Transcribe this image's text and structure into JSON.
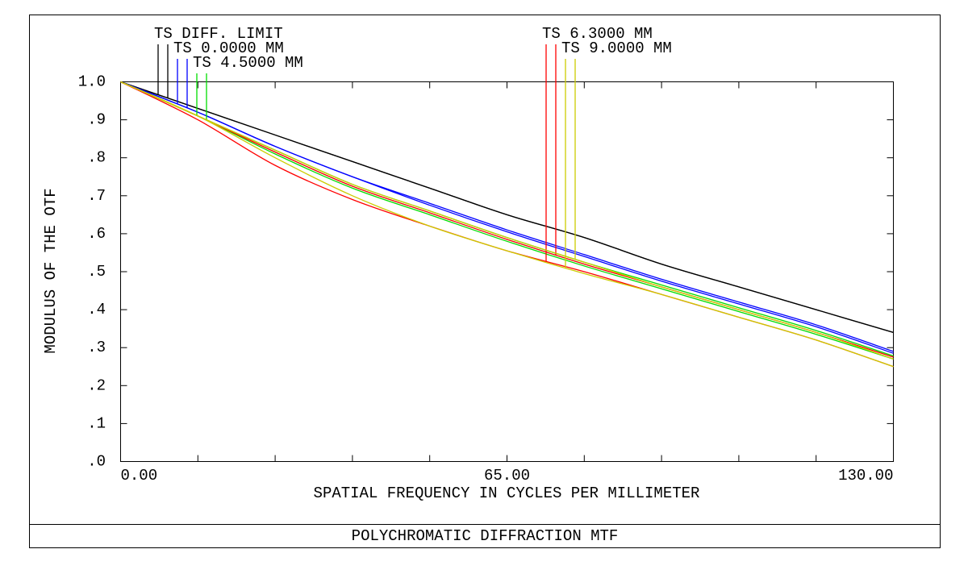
{
  "chart_data": {
    "type": "line",
    "title": "POLYCHROMATIC DIFFRACTION MTF",
    "xlabel": "SPATIAL FREQUENCY IN CYCLES PER MILLIMETER",
    "ylabel": "MODULUS OF THE OTF",
    "x": [
      0,
      13,
      26,
      39,
      52,
      65,
      78,
      91,
      104,
      117,
      130
    ],
    "xlim": [
      0,
      130
    ],
    "ylim": [
      0,
      1
    ],
    "xticks": [
      {
        "value": 0,
        "label": "0.00"
      },
      {
        "value": 65,
        "label": "65.00"
      },
      {
        "value": 130,
        "label": "130.00"
      }
    ],
    "xminor_ticks": [
      13,
      26,
      39,
      52,
      78,
      91,
      104,
      117
    ],
    "yticks": [
      {
        "value": 0,
        "label": ".0"
      },
      {
        "value": 0.1,
        "label": ".1"
      },
      {
        "value": 0.2,
        "label": ".2"
      },
      {
        "value": 0.3,
        "label": ".3"
      },
      {
        "value": 0.4,
        "label": ".4"
      },
      {
        "value": 0.5,
        "label": ".5"
      },
      {
        "value": 0.6,
        "label": ".6"
      },
      {
        "value": 0.7,
        "label": ".7"
      },
      {
        "value": 0.8,
        "label": ".8"
      },
      {
        "value": 0.9,
        "label": ".9"
      },
      {
        "value": 1,
        "label": "1.0"
      }
    ],
    "series": [
      {
        "name": "TS DIFF. LIMIT",
        "color": "#000000",
        "tangential": [
          1,
          0.93,
          0.86,
          0.79,
          0.72,
          0.65,
          0.59,
          0.52,
          0.46,
          0.4,
          0.34
        ],
        "sagittal": [
          1,
          0.93,
          0.86,
          0.79,
          0.72,
          0.65,
          0.59,
          0.52,
          0.46,
          0.4,
          0.34
        ]
      },
      {
        "name": "TS 0.0000 MM",
        "color": "#0000ff",
        "tangential": [
          1,
          0.92,
          0.83,
          0.75,
          0.68,
          0.61,
          0.545,
          0.48,
          0.42,
          0.36,
          0.29
        ],
        "sagittal": [
          1,
          0.92,
          0.83,
          0.75,
          0.675,
          0.605,
          0.54,
          0.475,
          0.415,
          0.355,
          0.285
        ]
      },
      {
        "name": "TS 4.5000 MM",
        "color": "#00dd00",
        "tangential": [
          1,
          0.91,
          0.82,
          0.73,
          0.66,
          0.59,
          0.525,
          0.465,
          0.405,
          0.345,
          0.278
        ],
        "sagittal": [
          1,
          0.91,
          0.81,
          0.72,
          0.65,
          0.58,
          0.515,
          0.455,
          0.395,
          0.335,
          0.27
        ]
      },
      {
        "name": "TS 6.3000 MM",
        "color": "#ff0000",
        "tangential": [
          1,
          0.9,
          0.78,
          0.69,
          0.62,
          0.555,
          0.5,
          0.44,
          0.38,
          0.32,
          0.25
        ],
        "sagittal": [
          1,
          0.91,
          0.815,
          0.725,
          0.655,
          0.585,
          0.52,
          0.46,
          0.4,
          0.34,
          0.275
        ]
      },
      {
        "name": "TS 9.0000 MM",
        "color": "#cccc00",
        "tangential": [
          1,
          0.91,
          0.8,
          0.7,
          0.62,
          0.555,
          0.495,
          0.44,
          0.38,
          0.32,
          0.25
        ],
        "sagittal": [
          1,
          0.91,
          0.82,
          0.73,
          0.66,
          0.59,
          0.525,
          0.46,
          0.4,
          0.34,
          0.27
        ]
      }
    ]
  }
}
